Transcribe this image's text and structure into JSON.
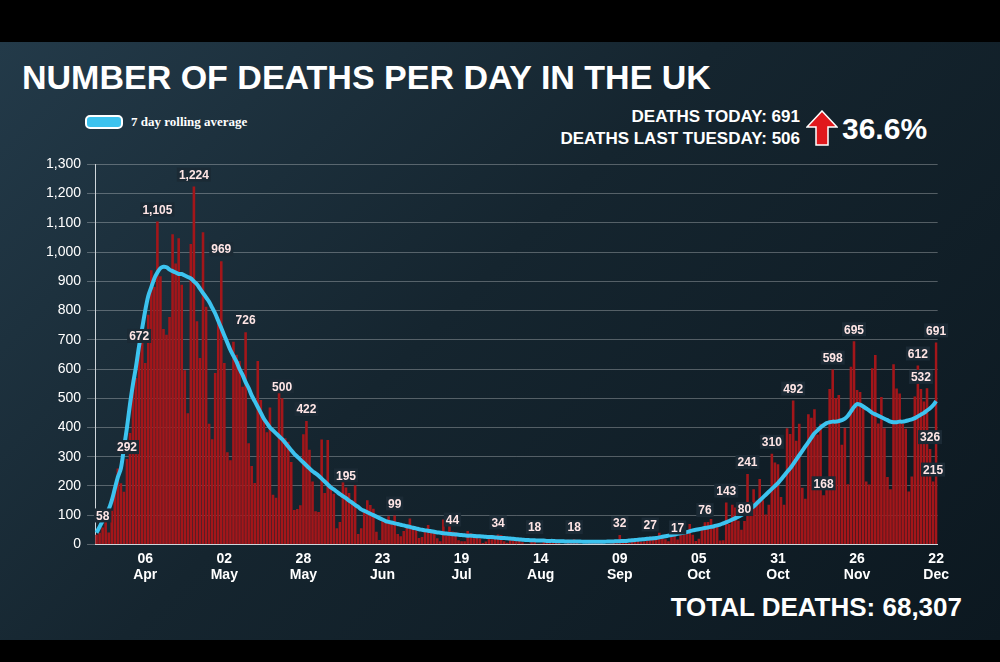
{
  "chart_data": {
    "type": "bar",
    "title": "NUMBER OF DEATHS PER DAY IN THE UK",
    "annotations": [
      "DEATHS TODAY: 691",
      "DEATHS LAST TUESDAY: 506",
      "36.6%",
      "TOTAL DEATHS: 68,307"
    ],
    "categories": [
      null,
      null,
      null,
      null,
      null,
      null,
      null,
      null,
      null,
      null,
      null,
      null,
      null,
      null,
      null,
      null,
      "06 Apr",
      null,
      null,
      null,
      null,
      null,
      null,
      null,
      null,
      null,
      null,
      null,
      null,
      null,
      null,
      null,
      null,
      null,
      null,
      null,
      null,
      null,
      null,
      null,
      null,
      null,
      "02 May",
      null,
      null,
      null,
      null,
      null,
      null,
      null,
      null,
      null,
      null,
      null,
      null,
      null,
      null,
      null,
      null,
      null,
      null,
      null,
      null,
      null,
      null,
      null,
      null,
      null,
      "28 May",
      null,
      null,
      null,
      null,
      null,
      null,
      null,
      null,
      null,
      null,
      null,
      null,
      null,
      null,
      null,
      null,
      null,
      null,
      null,
      null,
      null,
      null,
      null,
      null,
      null,
      "23 Jun",
      null,
      null,
      null,
      null,
      null,
      null,
      null,
      null,
      null,
      null,
      null,
      null,
      null,
      null,
      null,
      null,
      null,
      null,
      null,
      null,
      null,
      null,
      null,
      null,
      null,
      "19 Jul",
      null,
      null,
      null,
      null,
      null,
      null,
      null,
      null,
      null,
      null,
      null,
      null,
      null,
      null,
      null,
      null,
      null,
      null,
      null,
      null,
      null,
      null,
      null,
      null,
      null,
      "14 Aug",
      null,
      null,
      null,
      null,
      null,
      null,
      null,
      null,
      null,
      null,
      null,
      null,
      null,
      null,
      null,
      null,
      null,
      null,
      null,
      null,
      null,
      null,
      null,
      null,
      null,
      "09 Sep",
      null,
      null,
      null,
      null,
      null,
      null,
      null,
      null,
      null,
      null,
      null,
      null,
      null,
      null,
      null,
      null,
      null,
      null,
      null,
      null,
      null,
      null,
      null,
      null,
      null,
      "05 Oct",
      null,
      null,
      null,
      null,
      null,
      null,
      null,
      null,
      null,
      null,
      null,
      null,
      null,
      null,
      null,
      null,
      null,
      null,
      null,
      null,
      null,
      null,
      null,
      null,
      null,
      "31 Oct",
      null,
      null,
      null,
      null,
      null,
      null,
      null,
      null,
      null,
      null,
      null,
      null,
      null,
      null,
      null,
      null,
      null,
      null,
      null,
      null,
      null,
      null,
      null,
      null,
      null,
      "26 Nov",
      null,
      null,
      null,
      null,
      null,
      null,
      null,
      null,
      null,
      null,
      null,
      null,
      null,
      null,
      null,
      null,
      null,
      null,
      null,
      null,
      null,
      null,
      null,
      null,
      null,
      "22 Dec"
    ],
    "series": [
      {
        "type": "bar",
        "color": "#a3161a",
        "values": [
          33,
          40,
          58,
          87,
          41,
          115,
          181,
          260,
          209,
          180,
          292,
          381,
          563,
          569,
          672,
          708,
          621,
          786,
          938,
          881,
          1105,
          917,
          737,
          717,
          778,
          1061,
          961,
          1047,
          888,
          596,
          449,
          1028,
          1224,
          763,
          638,
          1068,
          813,
          413,
          360,
          586,
          765,
          969,
          621,
          315,
          288,
          693,
          649,
          627,
          539,
          726,
          346,
          268,
          210,
          627,
          494,
          428,
          384,
          468,
          170,
          160,
          545,
          500,
          363,
          351,
          282,
          118,
          121,
          134,
          377,
          422,
          324,
          215,
          113,
          111,
          359,
          176,
          357,
          204,
          173,
          55,
          77,
          245,
          195,
          176,
          151,
          202,
          36,
          55,
          113,
          151,
          135,
          122,
          43,
          15,
          81,
          83,
          96,
          70,
          99,
          36,
          28,
          46,
          59,
          89,
          64,
          48,
          22,
          25,
          50,
          66,
          48,
          40,
          21,
          11,
          85,
          30,
          65,
          44,
          42,
          14,
          11,
          11,
          46,
          38,
          35,
          26,
          20,
          5,
          10,
          25,
          18,
          26,
          34,
          32,
          11,
          6,
          21,
          19,
          11,
          15,
          7,
          2,
          2,
          12,
          18,
          2,
          3,
          11,
          5,
          6,
          12,
          16,
          6,
          1,
          2,
          16,
          6,
          18,
          12,
          2,
          1,
          3,
          14,
          14,
          10,
          6,
          7,
          2,
          2,
          3,
          8,
          8,
          32,
          6,
          9,
          5,
          11,
          20,
          21,
          9,
          10,
          19,
          27,
          20,
          21,
          40,
          27,
          18,
          11,
          37,
          34,
          17,
          40,
          66,
          49,
          70,
          33,
          12,
          19,
          59,
          76,
          77,
          87,
          65,
          67,
          13,
          14,
          143,
          70,
          136,
          126,
          81,
          50,
          80,
          241,
          137,
          189,
          150,
          224,
          151,
          102,
          136,
          310,
          280,
          274,
          162,
          136,
          397,
          378,
          492,
          355,
          413,
          194,
          156,
          445,
          433,
          462,
          376,
          413,
          168,
          213,
          532,
          598,
          501,
          511,
          341,
          398,
          206,
          608,
          695,
          528,
          521,
          479,
          215,
          205,
          603,
          648,
          414,
          504,
          397,
          231,
          189,
          616,
          533,
          516,
          414,
          396,
          181,
          232,
          506,
          612,
          532,
          489,
          534,
          326,
          215,
          691
        ],
        "value_labels": [
          null,
          null,
          "58",
          null,
          null,
          null,
          null,
          null,
          null,
          null,
          "292",
          null,
          null,
          null,
          "672",
          null,
          null,
          null,
          null,
          null,
          "1,105",
          null,
          null,
          null,
          null,
          null,
          null,
          null,
          null,
          null,
          null,
          null,
          "1,224",
          null,
          null,
          null,
          null,
          null,
          null,
          null,
          null,
          "969",
          null,
          null,
          null,
          null,
          null,
          null,
          null,
          "726",
          null,
          null,
          null,
          null,
          null,
          null,
          null,
          null,
          null,
          null,
          null,
          "500",
          null,
          null,
          null,
          null,
          null,
          null,
          null,
          "422",
          null,
          null,
          null,
          null,
          null,
          null,
          null,
          null,
          null,
          null,
          null,
          null,
          "195",
          null,
          null,
          null,
          null,
          null,
          null,
          null,
          null,
          null,
          null,
          null,
          null,
          null,
          null,
          null,
          "99",
          null,
          null,
          null,
          null,
          null,
          null,
          null,
          null,
          null,
          null,
          null,
          null,
          null,
          null,
          null,
          null,
          null,
          null,
          "44",
          null,
          null,
          null,
          null,
          null,
          null,
          null,
          null,
          null,
          null,
          null,
          null,
          null,
          null,
          "34",
          null,
          null,
          null,
          null,
          null,
          null,
          null,
          null,
          null,
          null,
          null,
          "18",
          null,
          null,
          null,
          null,
          null,
          null,
          null,
          null,
          null,
          null,
          null,
          null,
          "18",
          null,
          null,
          null,
          null,
          null,
          null,
          null,
          null,
          null,
          null,
          null,
          null,
          null,
          null,
          "32",
          null,
          null,
          null,
          null,
          null,
          null,
          null,
          null,
          null,
          "27",
          null,
          null,
          null,
          null,
          null,
          null,
          null,
          null,
          "17",
          null,
          null,
          null,
          null,
          null,
          null,
          null,
          null,
          "76",
          null,
          null,
          null,
          null,
          null,
          null,
          "143",
          null,
          null,
          null,
          null,
          null,
          "80",
          "241",
          null,
          null,
          null,
          null,
          null,
          null,
          null,
          "310",
          null,
          null,
          null,
          null,
          null,
          null,
          "492",
          null,
          null,
          null,
          null,
          null,
          null,
          null,
          null,
          null,
          "168",
          null,
          null,
          "598",
          null,
          null,
          null,
          null,
          null,
          null,
          "695",
          null,
          null,
          null,
          null,
          null,
          null,
          null,
          null,
          null,
          null,
          null,
          null,
          null,
          null,
          null,
          null,
          null,
          null,
          null,
          null,
          "612",
          "532",
          null,
          null,
          "326",
          "215",
          "691"
        ]
      },
      {
        "name": "7 day rolling average",
        "type": "line",
        "color": "#3cc3ef",
        "values": [
          40,
          60,
          80,
          100,
          120,
          150,
          190,
          230,
          260,
          330,
          400,
          480,
          550,
          610,
          680,
          740,
          800,
          850,
          880,
          910,
          930,
          945,
          950,
          948,
          940,
          935,
          930,
          925,
          925,
          920,
          915,
          910,
          900,
          890,
          875,
          860,
          845,
          830,
          810,
          790,
          765,
          740,
          715,
          690,
          665,
          645,
          625,
          600,
          580,
          555,
          535,
          510,
          490,
          470,
          450,
          430,
          415,
          400,
          390,
          380,
          370,
          360,
          348,
          335,
          322,
          310,
          300,
          290,
          280,
          270,
          260,
          250,
          243,
          235,
          225,
          215,
          205,
          195,
          188,
          180,
          172,
          165,
          158,
          150,
          143,
          135,
          128,
          120,
          115,
          110,
          105,
          100,
          95,
          90,
          85,
          80,
          77,
          75,
          72,
          70,
          67,
          65,
          62,
          60,
          57,
          55,
          52,
          50,
          48,
          47,
          45,
          43,
          41,
          40,
          38,
          37,
          36,
          35,
          34,
          33,
          32,
          31,
          30,
          30,
          29,
          28,
          28,
          27,
          26,
          25,
          25,
          24,
          23,
          22,
          22,
          21,
          20,
          19,
          18,
          17,
          16,
          15,
          15,
          14,
          14,
          13,
          13,
          13,
          12,
          12,
          12,
          11,
          11,
          11,
          10,
          10,
          10,
          10,
          10,
          10,
          9,
          9,
          9,
          9,
          9,
          9,
          9,
          9,
          10,
          10,
          10,
          11,
          11,
          12,
          12,
          13,
          14,
          15,
          16,
          17,
          18,
          19,
          20,
          21,
          22,
          24,
          26,
          28,
          30,
          32,
          34,
          36,
          38,
          40,
          42,
          45,
          48,
          50,
          52,
          54,
          56,
          58,
          60,
          62,
          65,
          68,
          72,
          76,
          80,
          85,
          90,
          95,
          100,
          108,
          115,
          122,
          130,
          140,
          150,
          160,
          170,
          180,
          190,
          200,
          210,
          222,
          235,
          248,
          260,
          275,
          290,
          305,
          320,
          335,
          350,
          365,
          380,
          390,
          400,
          408,
          415,
          418,
          420,
          420,
          422,
          425,
          430,
          440,
          455,
          470,
          480,
          478,
          472,
          465,
          458,
          450,
          445,
          440,
          435,
          430,
          425,
          420,
          418,
          418,
          420,
          420,
          422,
          425,
          428,
          432,
          438,
          444,
          450,
          458,
          466,
          476,
          490
        ]
      }
    ],
    "ylim": [
      0,
      1300
    ],
    "yticks": [
      0,
      100,
      200,
      300,
      400,
      500,
      600,
      700,
      800,
      900,
      {
        "value": 1000,
        "label": "1,000"
      },
      {
        "value": 1100,
        "label": "1,100"
      },
      {
        "value": 1200,
        "label": "1,200"
      },
      {
        "value": 1300,
        "label": "1,300"
      }
    ],
    "grid": true,
    "legend": "upper left",
    "data_labels": true
  }
}
